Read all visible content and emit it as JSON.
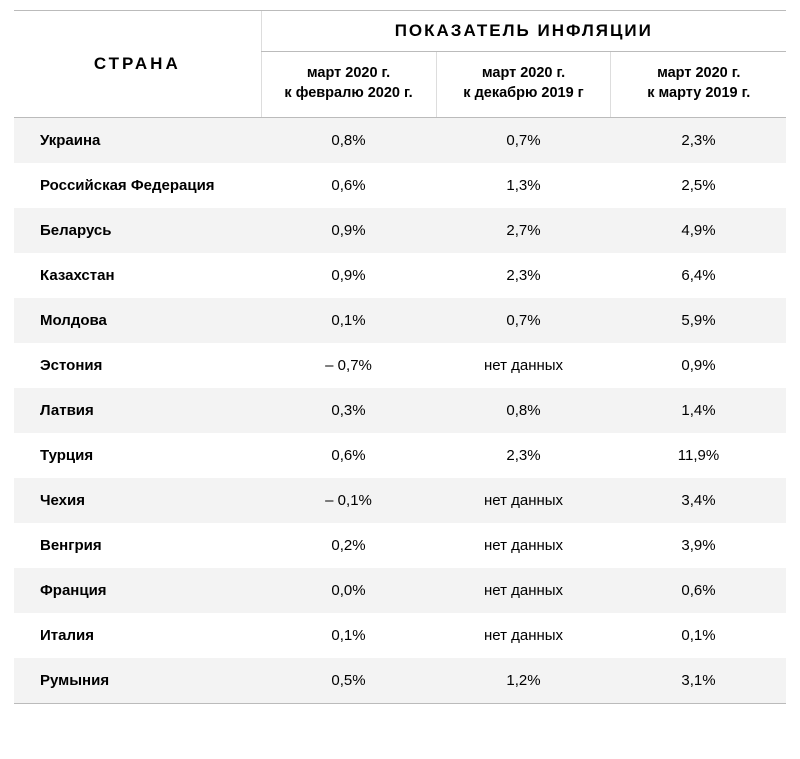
{
  "table": {
    "type": "table",
    "background_color": "#ffffff",
    "stripe_color": "#f3f3f3",
    "border_color": "#bbbbbb",
    "header_country": "СТРАНА",
    "header_super": "ПОКАЗАТЕЛЬ ИНФЛЯЦИИ",
    "columns": [
      {
        "line1": "март 2020 г.",
        "line2": "к февралю 2020 г."
      },
      {
        "line1": "март 2020 г.",
        "line2": "к декабрю 2019 г"
      },
      {
        "line1": "март 2020 г.",
        "line2": "к марту 2019 г."
      }
    ],
    "rows": [
      {
        "country": "Украина",
        "v1": "0,8%",
        "v2": "0,7%",
        "v3": "2,3%"
      },
      {
        "country": "Российская Федерация",
        "v1": "0,6%",
        "v2": "1,3%",
        "v3": "2,5%"
      },
      {
        "country": "Беларусь",
        "v1": "0,9%",
        "v2": "2,7%",
        "v3": "4,9%"
      },
      {
        "country": "Казахстан",
        "v1": "0,9%",
        "v2": "2,3%",
        "v3": "6,4%"
      },
      {
        "country": "Молдова",
        "v1": "0,1%",
        "v2": "0,7%",
        "v3": "5,9%"
      },
      {
        "country": "Эстония",
        "v1": "– 0,7%",
        "v2": "нет данных",
        "v3": "0,9%"
      },
      {
        "country": "Латвия",
        "v1": "0,3%",
        "v2": "0,8%",
        "v3": "1,4%"
      },
      {
        "country": "Турция",
        "v1": "0,6%",
        "v2": "2,3%",
        "v3": "11,9%"
      },
      {
        "country": "Чехия",
        "v1": "– 0,1%",
        "v2": "нет данных",
        "v3": "3,4%"
      },
      {
        "country": "Венгрия",
        "v1": "0,2%",
        "v2": "нет данных",
        "v3": "3,9%"
      },
      {
        "country": "Франция",
        "v1": "0,0%",
        "v2": "нет данных",
        "v3": "0,6%"
      },
      {
        "country": "Италия",
        "v1": "0,1%",
        "v2": "нет данных",
        "v3": "0,1%"
      },
      {
        "country": "Румыния",
        "v1": "0,5%",
        "v2": "1,2%",
        "v3": "3,1%"
      }
    ]
  }
}
